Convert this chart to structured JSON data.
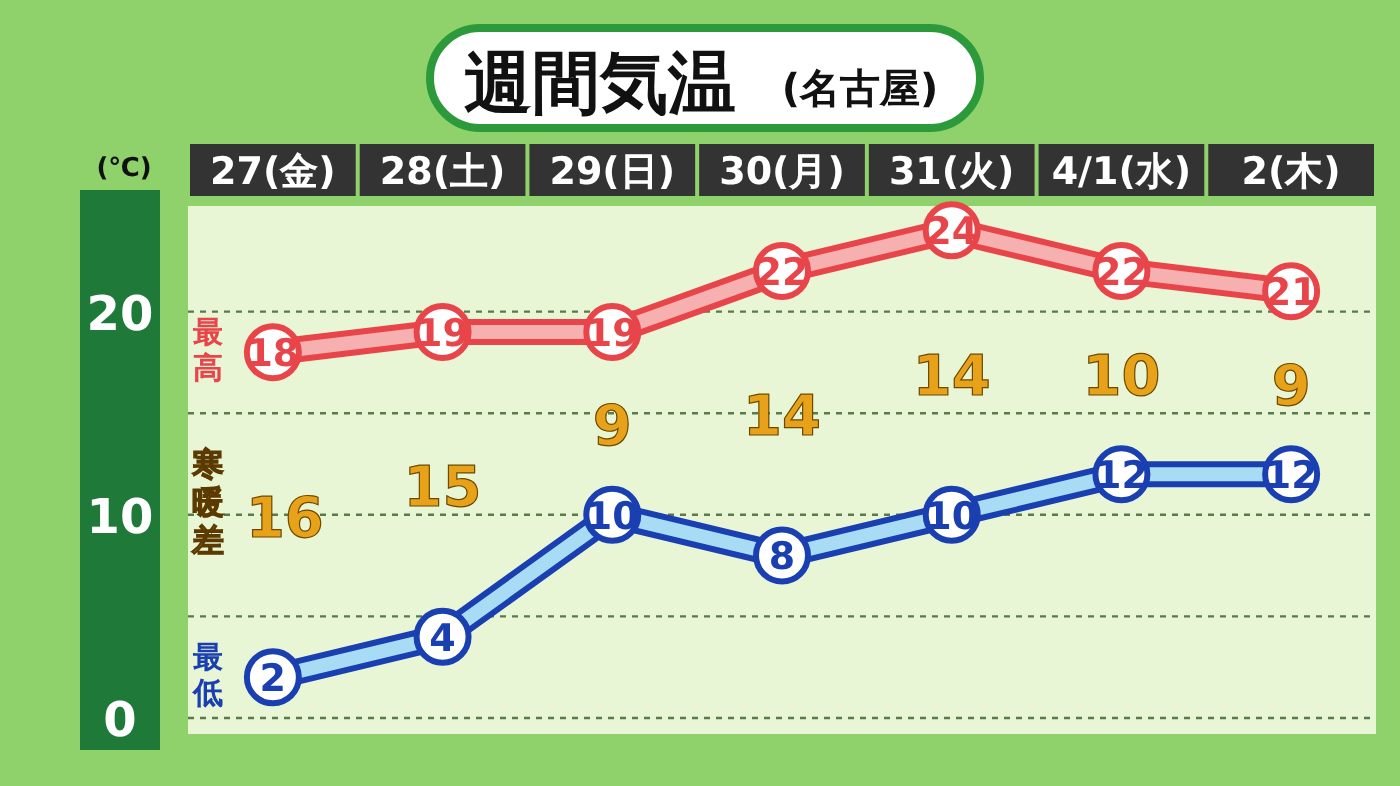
{
  "chart_data": {
    "type": "line",
    "title": "週間気温",
    "subtitle": "(名古屋)",
    "ylabel": "(℃)",
    "categories": [
      "27(金)",
      "28(土)",
      "29(日)",
      "30(月)",
      "31(火)",
      "4/1(水)",
      "2(木)"
    ],
    "series": [
      {
        "name": "最高",
        "color": "#e8454a",
        "values": [
          18,
          19,
          19,
          22,
          24,
          22,
          21
        ]
      },
      {
        "name": "最低",
        "color": "#1a3fb0",
        "values": [
          2,
          4,
          10,
          8,
          10,
          12,
          12
        ]
      }
    ],
    "ylim": [
      0,
      25
    ],
    "yticks": [
      0,
      10,
      20
    ],
    "grid": "y",
    "legend": false,
    "marker": "circle",
    "line_style": "solid",
    "data_labels": true,
    "annotations": [
      "寒暖差",
      "16",
      "15",
      "9",
      "14",
      "14",
      "10",
      "9"
    ]
  }
}
